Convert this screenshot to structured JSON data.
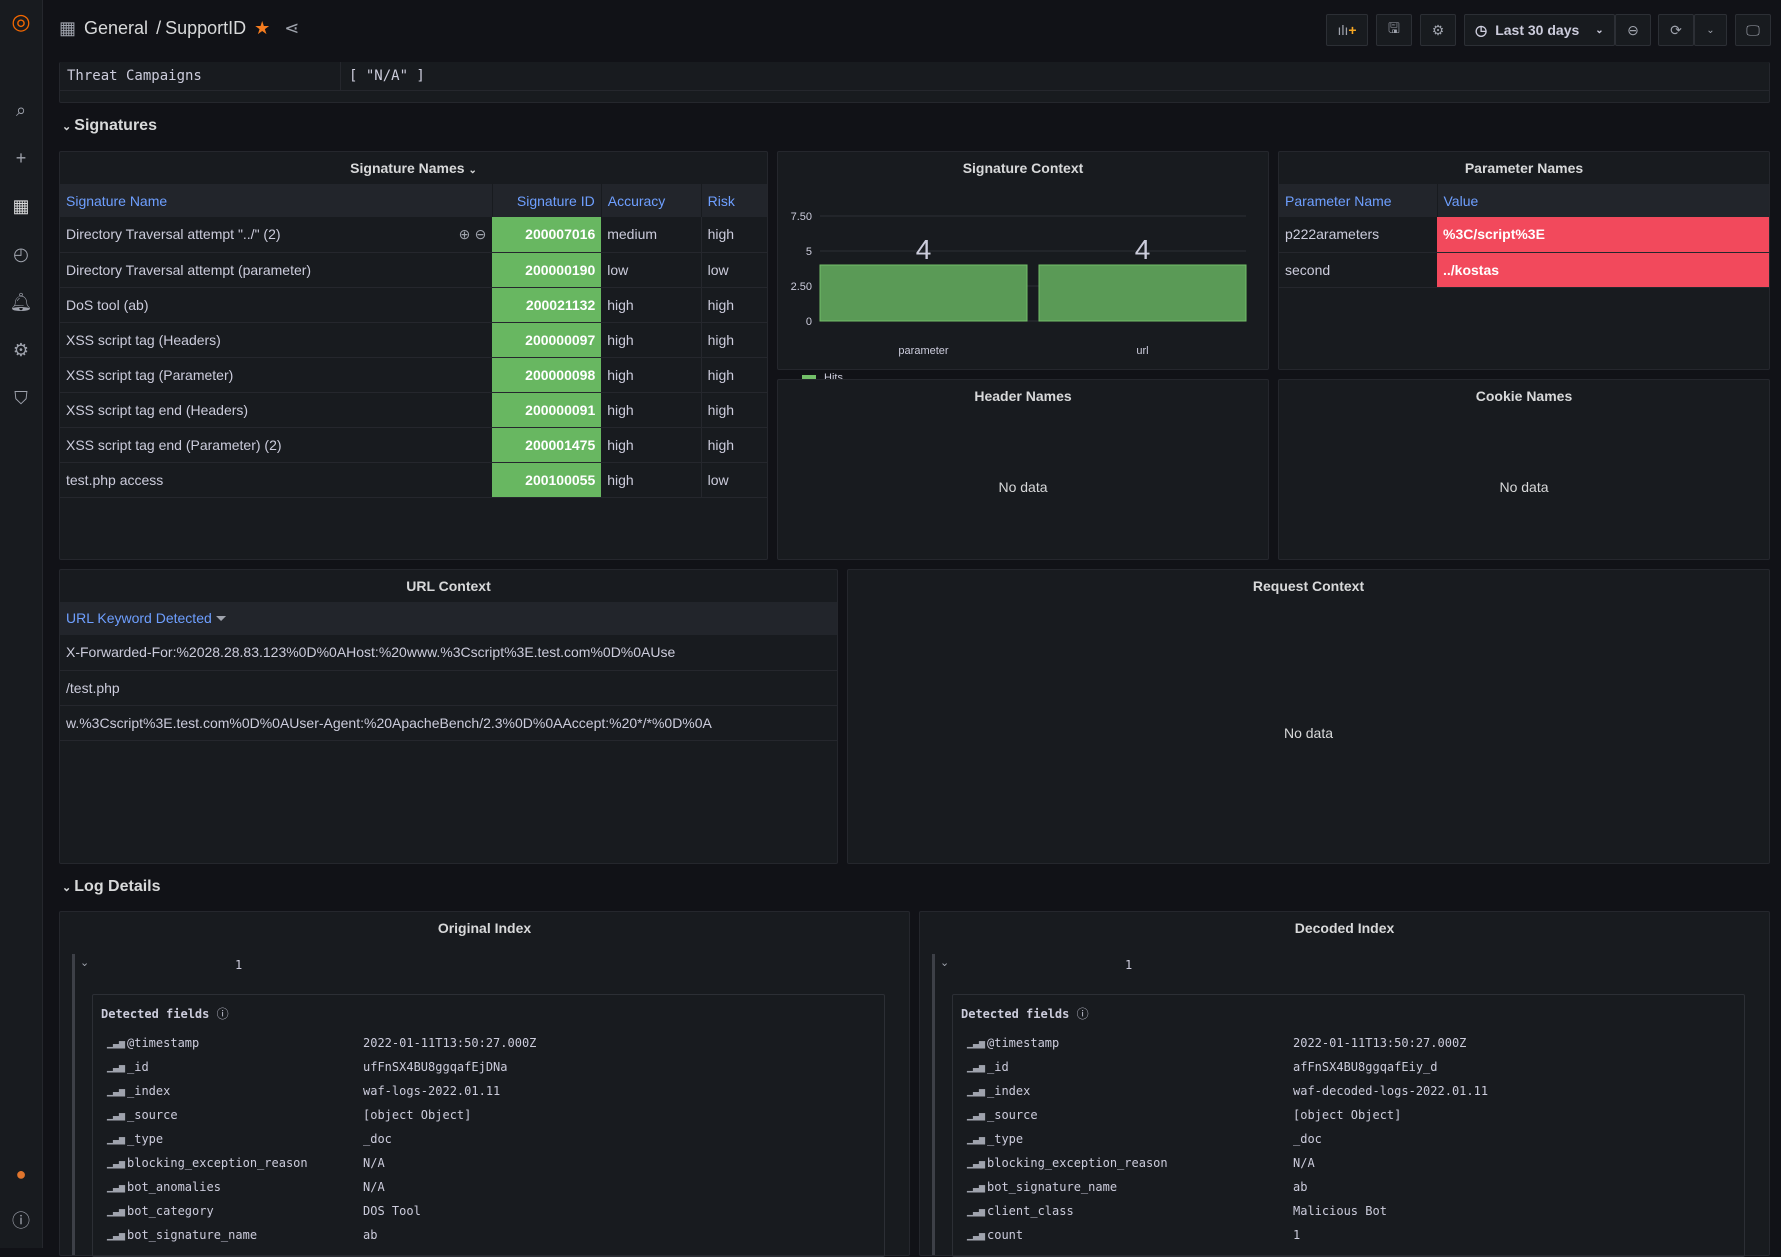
{
  "header": {
    "breadcrumb_folder": "General",
    "breadcrumb_sep": "/",
    "dashboard": "SupportID",
    "time_range": "Last 30 days"
  },
  "threat": {
    "label": "Threat Campaigns",
    "value": "[ \"N/A\" ]"
  },
  "sections": {
    "signatures": "Signatures",
    "log_details": "Log Details"
  },
  "signature_names": {
    "title": "Signature Names",
    "columns": [
      "Signature Name",
      "Signature ID",
      "Accuracy",
      "Risk"
    ],
    "rows": [
      [
        "Directory Traversal attempt \"../\" (2)",
        "200007016",
        "medium",
        "high"
      ],
      [
        "Directory Traversal attempt (parameter)",
        "200000190",
        "low",
        "low"
      ],
      [
        "DoS tool (ab)",
        "200021132",
        "high",
        "high"
      ],
      [
        "XSS script tag (Headers)",
        "200000097",
        "high",
        "high"
      ],
      [
        "XSS script tag (Parameter)",
        "200000098",
        "high",
        "high"
      ],
      [
        "XSS script tag end (Headers)",
        "200000091",
        "high",
        "high"
      ],
      [
        "XSS script tag end (Parameter) (2)",
        "200001475",
        "high",
        "high"
      ],
      [
        "test.php access",
        "200100055",
        "high",
        "low"
      ]
    ]
  },
  "chart_data": {
    "type": "bar",
    "title": "Signature Context",
    "categories": [
      "parameter",
      "url"
    ],
    "series": [
      {
        "name": "Hits",
        "values": [
          4,
          4
        ],
        "color": "#5a9a56"
      }
    ],
    "yticks": [
      "0",
      "2.50",
      "5",
      "7.50"
    ],
    "ylim": [
      0,
      8.5
    ],
    "legend": "bottom-left"
  },
  "parameter_names": {
    "title": "Parameter Names",
    "columns": [
      "Parameter Name",
      "Value"
    ],
    "rows": [
      [
        "p222arameters",
        "%3C/script%3E"
      ],
      [
        "second",
        "../kostas"
      ]
    ]
  },
  "header_names": {
    "title": "Header Names",
    "empty": "No data"
  },
  "cookie_names": {
    "title": "Cookie Names",
    "empty": "No data"
  },
  "url_context": {
    "title": "URL Context",
    "column": "URL Keyword Detected",
    "rows": [
      "X-Forwarded-For:%2028.28.83.123%0D%0AHost:%20www.%3Cscript%3E.test.com%0D%0AUse",
      "/test.php",
      "w.%3Cscript%3E.test.com%0D%0AUser-Agent:%20ApacheBench/2.3%0D%0AAccept:%20*/*%0D%0A"
    ]
  },
  "request_context": {
    "title": "Request Context",
    "empty": "No data"
  },
  "original_index": {
    "title": "Original Index",
    "count": "1",
    "detected": "Detected fields",
    "fields": [
      [
        "@timestamp",
        "2022-01-11T13:50:27.000Z"
      ],
      [
        "_id",
        "ufFnSX4BU8ggqafEjDNa"
      ],
      [
        "_index",
        "waf-logs-2022.01.11"
      ],
      [
        "_source",
        "[object Object]"
      ],
      [
        "_type",
        "_doc"
      ],
      [
        "blocking_exception_reason",
        "N/A"
      ],
      [
        "bot_anomalies",
        "N/A"
      ],
      [
        "bot_category",
        "DOS Tool"
      ],
      [
        "bot_signature_name",
        "ab"
      ]
    ]
  },
  "decoded_index": {
    "title": "Decoded Index",
    "count": "1",
    "detected": "Detected fields",
    "fields": [
      [
        "@timestamp",
        "2022-01-11T13:50:27.000Z"
      ],
      [
        "_id",
        "afFnSX4BU8ggqafEiy_d"
      ],
      [
        "_index",
        "waf-decoded-logs-2022.01.11"
      ],
      [
        "_source",
        "[object Object]"
      ],
      [
        "_type",
        "_doc"
      ],
      [
        "blocking_exception_reason",
        "N/A"
      ],
      [
        "bot_signature_name",
        "ab"
      ],
      [
        "client_class",
        "Malicious Bot"
      ],
      [
        "count",
        "1"
      ]
    ]
  }
}
